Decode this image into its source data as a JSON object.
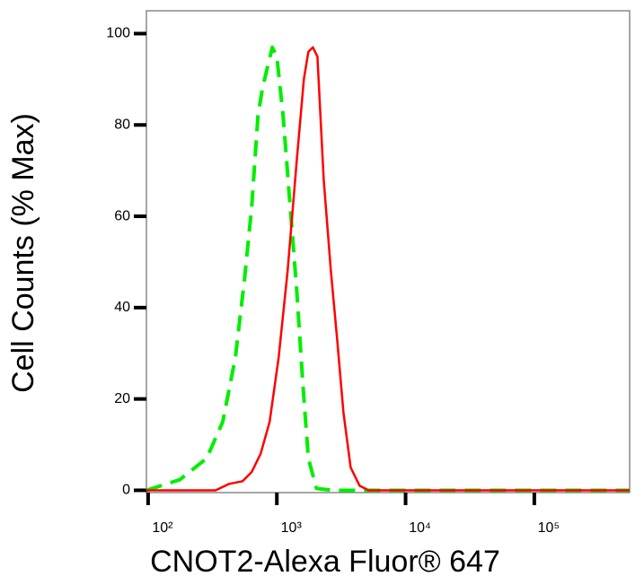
{
  "chart_data": {
    "type": "line",
    "y_label": "Cell Counts (% Max)",
    "x_label": "CNOT2-Alexa Fluor® 647",
    "xscale": "log",
    "xlim": [
      97,
      550000
    ],
    "ylim": [
      -0.5,
      105
    ],
    "xticks": [
      {
        "value": 100,
        "label": "10²"
      },
      {
        "value": 1000,
        "label": "10³"
      },
      {
        "value": 10000,
        "label": "10⁴"
      },
      {
        "value": 100000,
        "label": "10⁵"
      }
    ],
    "yticks": [
      0,
      20,
      40,
      60,
      80,
      100
    ],
    "series": [
      {
        "color": "#00ee00",
        "dashed": true,
        "x": [
          97,
          176,
          285,
          380,
          476,
          560,
          637,
          713,
          773,
          851,
          923,
          1000,
          1119,
          1253,
          1426,
          1596,
          1758,
          2032,
          2716,
          550000
        ],
        "values": [
          0,
          2.3,
          7,
          15,
          29,
          46,
          62,
          82,
          88,
          93,
          97,
          95,
          82,
          64,
          44,
          23,
          7,
          0.4,
          0,
          0
        ]
      },
      {
        "color": "#ff0000",
        "dashed": false,
        "x": [
          97,
          334,
          426,
          542,
          637,
          748,
          879,
          1033,
          1213,
          1426,
          1621,
          1758,
          1905,
          2066,
          2313,
          2630,
          2944,
          3291,
          3741,
          4395,
          5164,
          550000
        ],
        "values": [
          0,
          0,
          1.4,
          2,
          4,
          8,
          15,
          29,
          48,
          72,
          90,
          96,
          97,
          95,
          68,
          48,
          33,
          17,
          5,
          1,
          0,
          0
        ]
      }
    ]
  }
}
